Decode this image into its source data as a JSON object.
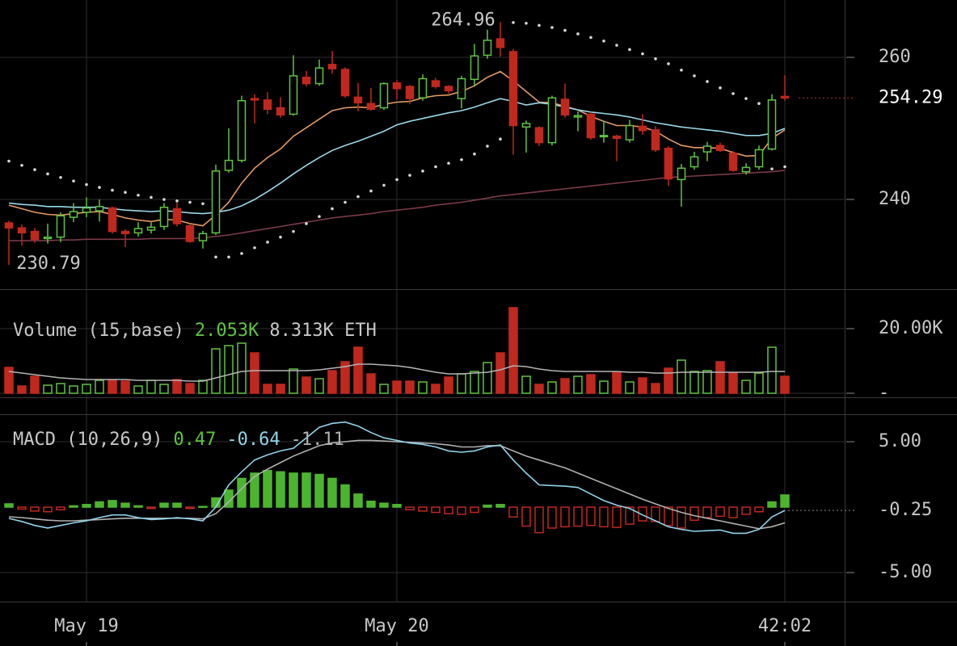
{
  "chart_data": [
    {
      "type": "candlestick",
      "open": [
        236.7,
        236.0,
        235.5,
        234.5,
        234.7,
        237.5,
        238.2,
        238.4,
        238.8,
        235.5,
        235.3,
        235.7,
        236.2,
        238.7,
        236.3,
        234.2,
        235.3,
        244.1,
        245.5,
        254.2,
        254.0,
        252.9,
        252.0,
        257.2,
        256.3,
        259.0,
        258.3,
        254.4,
        253.5,
        252.9,
        256.4,
        255.9,
        254.3,
        256.7,
        255.9,
        254.2,
        256.9,
        260.3,
        262.6,
        260.8,
        250.2,
        250.1,
        248.0,
        254.1,
        251.6,
        252.0,
        248.9,
        248.9,
        248.4,
        250.3,
        249.8,
        247.2,
        242.8,
        244.6,
        246.7,
        247.6,
        246.5,
        243.9,
        244.6,
        247.1,
        254.5
      ],
      "high": [
        237.0,
        236.5,
        236.0,
        236.6,
        238.2,
        239.5,
        240.3,
        240.0,
        239.0,
        235.8,
        236.8,
        236.8,
        239.5,
        239.6,
        236.5,
        235.6,
        244.9,
        250.0,
        254.6,
        254.8,
        255.1,
        254.4,
        260.3,
        258.1,
        259.7,
        260.9,
        258.6,
        256.4,
        255.7,
        256.5,
        256.8,
        256.1,
        257.6,
        257.1,
        256.1,
        257.4,
        261.9,
        263.9,
        264.96,
        261.2,
        251.1,
        250.3,
        254.6,
        256.3,
        252.4,
        252.3,
        251.1,
        249.1,
        251.2,
        252.0,
        250.3,
        247.5,
        245.0,
        246.7,
        248.1,
        248.0,
        246.8,
        245.1,
        247.6,
        254.8,
        257.5
      ],
      "low": [
        230.79,
        233.5,
        233.9,
        233.8,
        234.0,
        236.8,
        237.5,
        236.9,
        235.2,
        233.3,
        234.8,
        235.2,
        235.7,
        236.2,
        233.9,
        233.1,
        235.0,
        243.8,
        245.2,
        250.7,
        252.0,
        251.5,
        251.8,
        255.9,
        256.0,
        257.7,
        254.3,
        252.4,
        252.5,
        252.6,
        254.1,
        253.4,
        253.9,
        255.6,
        254.9,
        252.8,
        255.9,
        259.8,
        260.1,
        246.3,
        246.6,
        247.5,
        247.6,
        251.5,
        249.6,
        248.4,
        248.0,
        245.4,
        248.0,
        249.1,
        246.7,
        241.9,
        239.0,
        244.2,
        245.4,
        246.7,
        243.9,
        243.5,
        244.2,
        246.9,
        253.9
      ],
      "close": [
        236.0,
        235.3,
        234.4,
        234.7,
        237.7,
        238.3,
        238.8,
        239.0,
        235.5,
        235.2,
        235.9,
        236.1,
        238.9,
        236.6,
        234.1,
        235.2,
        244.0,
        245.5,
        253.9,
        254.0,
        252.7,
        251.9,
        257.4,
        256.3,
        258.5,
        258.4,
        254.6,
        253.6,
        252.7,
        256.3,
        255.6,
        254.2,
        257.0,
        255.9,
        255.3,
        257.0,
        260.2,
        262.4,
        261.4,
        250.4,
        250.7,
        248.0,
        254.3,
        251.9,
        251.8,
        248.7,
        249.0,
        248.6,
        250.4,
        249.7,
        247.0,
        242.9,
        244.4,
        246.0,
        247.5,
        246.9,
        244.1,
        244.5,
        247.0,
        254.0,
        254.29
      ],
      "up_color": "#5fc43f",
      "down_color": "#c0281e",
      "lines": [
        {
          "color": "#e59a62",
          "values": [
            239.2,
            238.7,
            238.2,
            237.9,
            237.8,
            238.0,
            238.2,
            238.3,
            237.9,
            237.4,
            237.1,
            236.9,
            237.2,
            237.1,
            236.6,
            236.3,
            237.8,
            239.6,
            242.3,
            244.4,
            245.9,
            247.1,
            248.9,
            250.1,
            251.3,
            252.5,
            252.9,
            253.0,
            252.9,
            253.4,
            253.7,
            253.8,
            254.3,
            254.6,
            254.7,
            255.2,
            256.0,
            257.2,
            258.0,
            256.7,
            255.2,
            253.7,
            253.6,
            253.1,
            252.6,
            251.7,
            251.0,
            250.4,
            250.4,
            250.2,
            249.6,
            248.5,
            247.6,
            247.3,
            247.3,
            247.2,
            246.6,
            246.1,
            246.2,
            248.6,
            249.8
          ]
        },
        {
          "color": "#98d8e8",
          "values": [
            239.5,
            239.3,
            239.2,
            239.0,
            239.0,
            238.9,
            238.9,
            238.9,
            238.7,
            238.5,
            238.4,
            238.3,
            238.4,
            238.3,
            238.1,
            238.0,
            238.2,
            238.5,
            239.1,
            240.0,
            241.1,
            242.3,
            243.6,
            244.8,
            245.9,
            246.9,
            247.6,
            248.2,
            248.9,
            249.6,
            250.5,
            251.0,
            251.4,
            251.8,
            252.2,
            252.5,
            253.0,
            253.6,
            254.2,
            253.8,
            253.3,
            253.6,
            253.4,
            253.0,
            252.6,
            252.3,
            252.1,
            251.9,
            251.6,
            251.2,
            250.8,
            250.5,
            250.2,
            250.0,
            249.8,
            249.6,
            249.3,
            249.0,
            249.0,
            249.3,
            250.0
          ]
        },
        {
          "color": "#7a3a48",
          "values": [
            234.2,
            234.2,
            234.2,
            234.2,
            234.3,
            234.3,
            234.4,
            234.4,
            234.4,
            234.4,
            234.4,
            234.5,
            234.5,
            234.5,
            234.5,
            234.6,
            234.8,
            235.0,
            235.3,
            235.6,
            235.9,
            236.2,
            236.5,
            236.8,
            237.1,
            237.4,
            237.6,
            237.8,
            238.0,
            238.3,
            238.5,
            238.7,
            238.9,
            239.2,
            239.4,
            239.6,
            239.9,
            240.2,
            240.5,
            240.7,
            240.9,
            241.1,
            241.3,
            241.5,
            241.7,
            241.9,
            242.1,
            242.3,
            242.5,
            242.7,
            242.9,
            243.1,
            243.2,
            243.3,
            243.4,
            243.5,
            243.6,
            243.7,
            243.8,
            243.9,
            244.1
          ]
        }
      ],
      "sar": {
        "color": "#d8d8d8",
        "values": [
          245.4,
          244.8,
          244.2,
          243.6,
          243.1,
          242.6,
          242.1,
          241.7,
          241.3,
          241.0,
          240.6,
          240.3,
          240.0,
          239.8,
          239.6,
          239.4,
          231.9,
          231.9,
          232.4,
          233.2,
          234.0,
          234.7,
          235.5,
          236.6,
          237.6,
          238.7,
          239.6,
          240.4,
          241.2,
          242.0,
          242.8,
          243.4,
          244.0,
          244.6,
          245.1,
          245.6,
          246.4,
          247.5,
          248.5,
          264.9,
          264.8,
          264.5,
          264.2,
          263.8,
          263.3,
          262.8,
          262.3,
          261.7,
          261.1,
          260.5,
          259.8,
          259.1,
          258.2,
          257.4,
          256.6,
          255.7,
          254.9,
          254.2,
          253.5,
          244.3,
          244.6
        ]
      },
      "max_price": 264.96,
      "min_price": 230.79,
      "last_price": 254.29,
      "last_price_color": "#c0281e",
      "xlim": [
        -0.6875,
        64.625
      ],
      "ylim": [
        227.39,
        268.07
      ],
      "yticks": [
        240,
        260
      ],
      "grid": true
    },
    {
      "type": "bar",
      "title": "Volume (15,base)",
      "readouts": [
        {
          "text": "2.053K",
          "color": "#5fc43f"
        },
        {
          "text": "8.313K ETH",
          "color": "#c8c8c8"
        }
      ],
      "values": [
        8000,
        2250,
        5250,
        2500,
        3000,
        2250,
        2750,
        4000,
        4000,
        3750,
        2250,
        4000,
        2750,
        4250,
        3000,
        4000,
        13750,
        14750,
        15500,
        12500,
        2750,
        2750,
        7500,
        5000,
        4500,
        7000,
        9750,
        14250,
        6000,
        2750,
        3750,
        3750,
        3500,
        2750,
        5000,
        6000,
        6750,
        9500,
        12500,
        26500,
        5250,
        2750,
        3500,
        4500,
        5250,
        5750,
        3750,
        6500,
        3500,
        4750,
        3000,
        7750,
        10250,
        6750,
        7000,
        9750,
        6250,
        4000,
        6250,
        14250,
        5250
      ],
      "ma": {
        "color": "#b4b4b4",
        "values": [
          6750,
          6250,
          5750,
          5250,
          4750,
          4500,
          4250,
          4250,
          4250,
          4250,
          4000,
          4000,
          4000,
          4000,
          3750,
          3750,
          4750,
          5750,
          6750,
          7000,
          7000,
          7000,
          7000,
          7000,
          7250,
          7750,
          8250,
          9000,
          9000,
          8750,
          8500,
          8000,
          7250,
          6500,
          6000,
          6000,
          6250,
          6500,
          7250,
          8500,
          8250,
          7500,
          7000,
          6750,
          6750,
          6750,
          6750,
          6750,
          6500,
          6500,
          6250,
          6250,
          6500,
          6500,
          6500,
          6500,
          6500,
          6500,
          6500,
          6750,
          6750
        ]
      },
      "xlim": [
        -0.6875,
        64.625
      ],
      "ylim": [
        -1250,
        27250
      ],
      "yticks": [
        {
          "value": 20000,
          "label": "20.00K"
        },
        {
          "value": 0,
          "label": "-"
        }
      ],
      "grid": true
    },
    {
      "type": "macd",
      "title": "MACD (10,26,9)",
      "readouts": [
        {
          "value": 0.47,
          "color": "#5fc43f"
        },
        {
          "value": -0.64,
          "color": "#8fd3ea"
        },
        {
          "value": -1.11,
          "color": "#b0b0b0"
        }
      ],
      "histogram": [
        0.25,
        -0.15,
        -0.3,
        -0.35,
        -0.2,
        0.1,
        0.2,
        0.4,
        0.5,
        0.3,
        0.1,
        -0.1,
        0.3,
        0.3,
        -0.1,
        0.05,
        0.7,
        1.3,
        2.2,
        2.6,
        2.8,
        2.7,
        2.6,
        2.6,
        2.5,
        2.2,
        1.7,
        1.0,
        0.45,
        0.3,
        0.2,
        -0.2,
        -0.3,
        -0.4,
        -0.5,
        -0.55,
        -0.4,
        0.15,
        0.2,
        -0.75,
        -1.45,
        -1.95,
        -1.6,
        -1.5,
        -1.45,
        -1.4,
        -1.5,
        -1.55,
        -1.3,
        -1.05,
        -1.1,
        -1.4,
        -1.6,
        -1.0,
        -0.8,
        -0.7,
        -0.8,
        -0.55,
        -0.35,
        0.4,
        0.93
      ],
      "up_color": "#4cb52e",
      "down_color": "#c0281e",
      "macd": {
        "color": "#8fd3ea",
        "values": [
          -0.86,
          -1.1,
          -1.4,
          -1.6,
          -1.4,
          -1.2,
          -1.05,
          -0.8,
          -0.6,
          -0.6,
          -0.8,
          -0.95,
          -0.9,
          -0.8,
          -0.9,
          -1.05,
          0.0,
          1.7,
          2.7,
          3.6,
          4.0,
          4.3,
          4.5,
          5.3,
          6.1,
          6.4,
          6.5,
          6.2,
          5.7,
          5.3,
          5.1,
          4.9,
          4.8,
          4.6,
          4.3,
          4.2,
          4.3,
          4.6,
          4.75,
          3.6,
          2.6,
          1.7,
          1.65,
          1.6,
          1.5,
          1.0,
          0.5,
          0.15,
          -0.1,
          -0.6,
          -1.05,
          -1.5,
          -1.7,
          -1.85,
          -1.8,
          -1.75,
          -2.0,
          -2.0,
          -1.7,
          -0.75,
          -0.25
        ]
      },
      "signal": {
        "color": "#b0b0b0",
        "values": [
          -0.74,
          -0.8,
          -0.9,
          -1.0,
          -1.05,
          -1.05,
          -1.0,
          -0.95,
          -0.9,
          -0.85,
          -0.85,
          -0.85,
          -0.85,
          -0.85,
          -0.85,
          -0.9,
          -0.5,
          0.4,
          1.4,
          2.35,
          2.9,
          3.4,
          3.9,
          4.3,
          4.7,
          4.9,
          5.0,
          5.1,
          5.1,
          5.05,
          5.0,
          4.95,
          4.9,
          4.85,
          4.75,
          4.6,
          4.6,
          4.7,
          4.7,
          4.3,
          3.9,
          3.6,
          3.3,
          3.0,
          2.6,
          2.2,
          1.8,
          1.4,
          1.0,
          0.6,
          0.25,
          -0.1,
          -0.4,
          -0.65,
          -0.85,
          -1.05,
          -1.25,
          -1.45,
          -1.65,
          -1.5,
          -1.2
        ]
      },
      "last_value": {
        "value": -0.25,
        "label": "-0.25"
      },
      "xlim": [
        -0.6875,
        64.625
      ],
      "ylim": [
        -7.22,
        7.1
      ],
      "yticks": [
        {
          "value": 5,
          "label": "5.00"
        },
        {
          "value": -5,
          "label": "-5.00"
        }
      ],
      "xticks": [
        {
          "value": 6,
          "label": "May 19"
        },
        {
          "value": 30,
          "label": "May 20"
        },
        {
          "value": 60,
          "label": "42:02"
        }
      ],
      "grid": true
    }
  ]
}
